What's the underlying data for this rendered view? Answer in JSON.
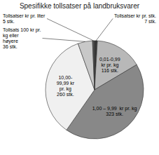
{
  "chart_data": {
    "type": "pie",
    "title": "Spesifikke tollsatser på landbruksvarer",
    "categories": [
      "Tollsatser kr pr. stk.\n7 stk.",
      "0,01-0,99\nkr pr. kg\n116 stk.",
      "1,00 – 9,99  kr pr. kg\n323 stk.",
      "10,00-\n99,99 kr\npr. kg\n260 stk.",
      "Tollsats 100 kr pr.\nkg eller\nhøyere\n36 stk.",
      "Tollsatser kr pr. liter\n5 stk."
    ],
    "values": [
      7,
      116,
      323,
      260,
      36,
      5
    ],
    "colors": [
      "#383838",
      "#b8b8b8",
      "#888888",
      "#f0f0f0",
      "#c8c8c8",
      "#505050"
    ]
  }
}
